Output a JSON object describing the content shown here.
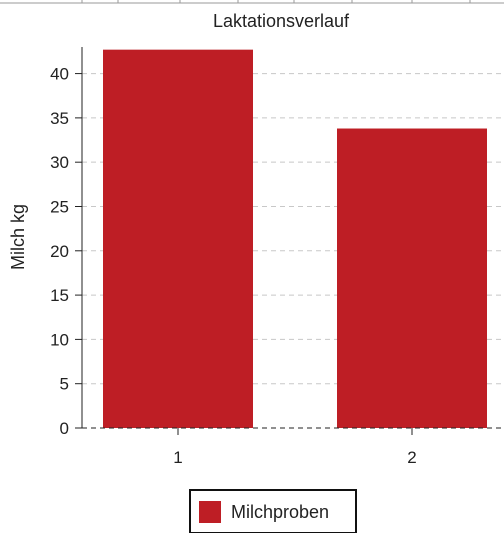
{
  "chart_data": {
    "type": "bar",
    "title": "Laktationsverlauf",
    "xlabel": "",
    "ylabel": "Milch kg",
    "categories": [
      "1",
      "2"
    ],
    "series": [
      {
        "name": "Milchproben",
        "values": [
          42.7,
          33.8
        ],
        "color": "#be1e25"
      }
    ],
    "ylim": [
      0,
      43
    ],
    "yticks": [
      0,
      5,
      10,
      15,
      20,
      25,
      30,
      35,
      40
    ],
    "grid": true,
    "legend_position": "bottom"
  }
}
